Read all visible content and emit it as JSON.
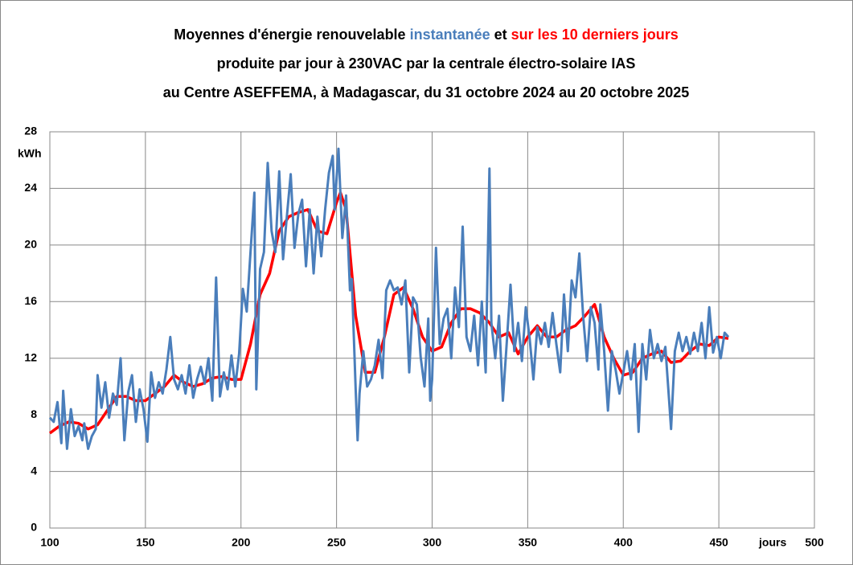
{
  "chart_data": {
    "type": "line",
    "title": [
      "Moyennes d'énergie renouvelable",
      "instantanée",
      "et",
      "sur les 10 derniers jours"
    ],
    "subtitle": [
      "produite par jour à 230VAC par la centrale électro-solaire IAS",
      "au Centre ASEFFEMA, à Madagascar, du 31 octobre 2024 au 20 octobre 2025"
    ],
    "y_label": "kWh",
    "x_label": "jours",
    "xlim": [
      100,
      500
    ],
    "xticks": [
      100,
      150,
      200,
      250,
      300,
      350,
      400,
      450,
      500
    ],
    "ylim": [
      0,
      28
    ],
    "yticks": [
      0,
      4,
      8,
      12,
      16,
      20,
      24,
      28
    ],
    "grid": true,
    "series": [
      {
        "name": "instantanée",
        "color": "#4a7ebb",
        "x": [
          100,
          102,
          104,
          106,
          107,
          109,
          111,
          113,
          115,
          117,
          118,
          120,
          122,
          124,
          125,
          127,
          129,
          131,
          133,
          135,
          137,
          139,
          141,
          143,
          145,
          147,
          149,
          151,
          153,
          155,
          157,
          159,
          161,
          163,
          165,
          167,
          169,
          171,
          173,
          175,
          177,
          179,
          181,
          183,
          185,
          187,
          189,
          191,
          193,
          195,
          197,
          199,
          201,
          203,
          205,
          207,
          208,
          210,
          212,
          214,
          216,
          218,
          220,
          222,
          224,
          226,
          228,
          230,
          232,
          234,
          236,
          238,
          240,
          242,
          244,
          246,
          248,
          249,
          251,
          253,
          255,
          257,
          258,
          260,
          261,
          262,
          264,
          266,
          268,
          270,
          272,
          274,
          276,
          278,
          280,
          282,
          284,
          286,
          288,
          290,
          292,
          294,
          296,
          298,
          299,
          300,
          302,
          304,
          306,
          308,
          310,
          312,
          314,
          316,
          318,
          320,
          322,
          324,
          326,
          328,
          330,
          331,
          333,
          335,
          337,
          339,
          341,
          343,
          345,
          347,
          349,
          351,
          353,
          355,
          357,
          359,
          361,
          363,
          365,
          367,
          369,
          371,
          373,
          375,
          377,
          379,
          381,
          383,
          385,
          387,
          388,
          390,
          392,
          394,
          396,
          398,
          400,
          402,
          404,
          406,
          408,
          410,
          412,
          414,
          416,
          418,
          420,
          422,
          424,
          425,
          427,
          429,
          431,
          433,
          435,
          437,
          439,
          441,
          443,
          445,
          447,
          449,
          451,
          453,
          455
        ],
        "values": [
          7.8,
          7.5,
          8.9,
          6.0,
          9.7,
          5.6,
          8.4,
          6.5,
          7.2,
          6.2,
          7.4,
          5.6,
          6.5,
          7.0,
          10.8,
          8.5,
          10.3,
          7.8,
          9.5,
          8.7,
          12.0,
          6.2,
          9.6,
          10.8,
          7.5,
          9.8,
          8.4,
          6.1,
          11.0,
          9.2,
          10.3,
          9.5,
          11.2,
          13.5,
          10.5,
          9.8,
          10.8,
          9.5,
          11.5,
          9.2,
          10.5,
          11.4,
          10.2,
          12.0,
          9.0,
          17.7,
          9.3,
          11.0,
          9.8,
          12.2,
          10.0,
          12.3,
          16.9,
          15.3,
          19.5,
          23.7,
          9.8,
          18.3,
          19.5,
          25.8,
          21.0,
          19.5,
          25.2,
          19.0,
          22.0,
          25.0,
          19.8,
          22.2,
          23.2,
          18.5,
          22.5,
          18.0,
          22.0,
          19.2,
          22.5,
          25.1,
          26.3,
          22.5,
          26.8,
          20.5,
          23.5,
          16.8,
          17.6,
          9.8,
          6.2,
          9.5,
          12.5,
          10.0,
          10.5,
          11.5,
          13.3,
          10.6,
          16.8,
          17.5,
          16.8,
          17.0,
          15.8,
          17.5,
          11.0,
          16.3,
          15.8,
          12.1,
          10.0,
          14.8,
          9.0,
          10.5,
          19.8,
          13.0,
          14.8,
          15.5,
          12.0,
          17.0,
          14.2,
          21.3,
          13.5,
          12.5,
          15.0,
          11.5,
          16.0,
          11.0,
          25.4,
          14.5,
          12.0,
          15.0,
          9.0,
          13.0,
          17.2,
          12.5,
          14.5,
          11.8,
          15.6,
          13.4,
          10.5,
          14.2,
          13.0,
          14.5,
          12.8,
          15.2,
          13.0,
          11.0,
          16.5,
          12.5,
          17.5,
          16.3,
          19.4,
          15.0,
          11.8,
          15.6,
          14.5,
          11.2,
          15.8,
          12.5,
          8.3,
          12.5,
          11.2,
          9.5,
          11.0,
          12.5,
          10.5,
          13.0,
          6.8,
          13.0,
          10.5,
          14.0,
          12.0,
          13.0,
          11.8,
          12.8,
          9.0,
          7.0,
          12.5,
          13.8,
          12.5,
          13.5,
          12.3,
          13.8,
          12.5,
          14.5,
          12.0,
          15.6,
          12.4,
          13.5,
          12.0,
          13.8,
          13.5
        ]
      },
      {
        "name": "sur les 10 derniers jours",
        "color": "#ff0000",
        "x": [
          100,
          105,
          110,
          115,
          120,
          125,
          130,
          135,
          140,
          145,
          150,
          155,
          160,
          165,
          170,
          175,
          180,
          185,
          190,
          195,
          200,
          205,
          210,
          215,
          220,
          225,
          230,
          235,
          240,
          245,
          250,
          252,
          255,
          260,
          265,
          270,
          275,
          280,
          285,
          290,
          295,
          300,
          305,
          310,
          315,
          320,
          325,
          330,
          335,
          340,
          345,
          350,
          355,
          360,
          365,
          370,
          375,
          380,
          385,
          390,
          395,
          400,
          405,
          410,
          415,
          420,
          425,
          430,
          435,
          440,
          445,
          450,
          455
        ],
        "values": [
          6.7,
          7.2,
          7.5,
          7.4,
          7.0,
          7.3,
          8.3,
          9.3,
          9.3,
          9.0,
          9.0,
          9.5,
          10.0,
          10.8,
          10.3,
          10.0,
          10.2,
          10.6,
          10.7,
          10.5,
          10.5,
          13.0,
          16.5,
          18.0,
          21.0,
          22.0,
          22.3,
          22.5,
          21.0,
          20.8,
          23.0,
          23.7,
          22.5,
          15.0,
          11.0,
          11.0,
          13.5,
          16.5,
          17.0,
          15.5,
          13.5,
          12.5,
          12.8,
          14.5,
          15.5,
          15.5,
          15.2,
          14.5,
          13.5,
          13.8,
          12.3,
          13.5,
          14.3,
          13.5,
          13.5,
          14.0,
          14.3,
          15.0,
          15.8,
          13.5,
          12.0,
          10.8,
          11.0,
          12.0,
          12.3,
          12.5,
          11.7,
          11.8,
          12.5,
          13.0,
          12.9,
          13.5,
          13.4
        ]
      }
    ]
  }
}
